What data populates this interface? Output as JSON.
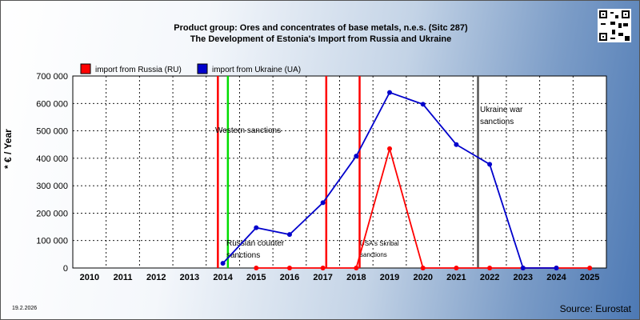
{
  "titles": {
    "line1": "Product group: Ores and concentrates of base metals, n.e.s. (Sitc 287)",
    "line2": "The Development of Estonia's Import from  Russia and Ukraine"
  },
  "footer": {
    "date": "19.2.2026",
    "source": "Source: Eurostat"
  },
  "chart_data": {
    "type": "line",
    "ylabel": "* € / Year",
    "ylim": [
      0,
      700000
    ],
    "yticks": [
      0,
      100000,
      200000,
      300000,
      400000,
      500000,
      600000,
      700000
    ],
    "ytick_labels": [
      "0",
      "100 000",
      "200 000",
      "300 000",
      "400 000",
      "500 000",
      "600 000",
      "700 000"
    ],
    "categories": [
      "2010",
      "2011",
      "2012",
      "2013",
      "2014",
      "2015",
      "2016",
      "2017",
      "2018",
      "2019",
      "2020",
      "2021",
      "2022",
      "2023",
      "2024",
      "2025"
    ],
    "grid": true,
    "legend_position": "top-left",
    "series": [
      {
        "name": "import from Russia (RU)",
        "color": "#ff0000",
        "values": [
          null,
          null,
          null,
          null,
          null,
          0,
          0,
          0,
          0,
          435000,
          0,
          0,
          0,
          0,
          0,
          0
        ]
      },
      {
        "name": "import from Ukraine (UA)",
        "color": "#0000cc",
        "values": [
          null,
          null,
          null,
          null,
          17000,
          147000,
          122000,
          238000,
          408000,
          640000,
          597000,
          450000,
          378000,
          0,
          0,
          null
        ]
      }
    ],
    "annotations": [
      {
        "x": 2013.85,
        "color": "#ff0000",
        "text": ""
      },
      {
        "x": 2014.15,
        "color": "#00dd00",
        "text": "Western sanctions"
      },
      {
        "x": 2017.1,
        "color": "#ff0000",
        "text": ""
      },
      {
        "x": 2018.1,
        "color": "#ff0000",
        "text": ""
      },
      {
        "x": 2021.65,
        "color": "#555555",
        "text": "Ukraine war sanctions"
      }
    ],
    "annotation_texts": {
      "russian_counter": "Russian counter sanctions",
      "skripal": "USA's Skribal sanctions"
    }
  }
}
